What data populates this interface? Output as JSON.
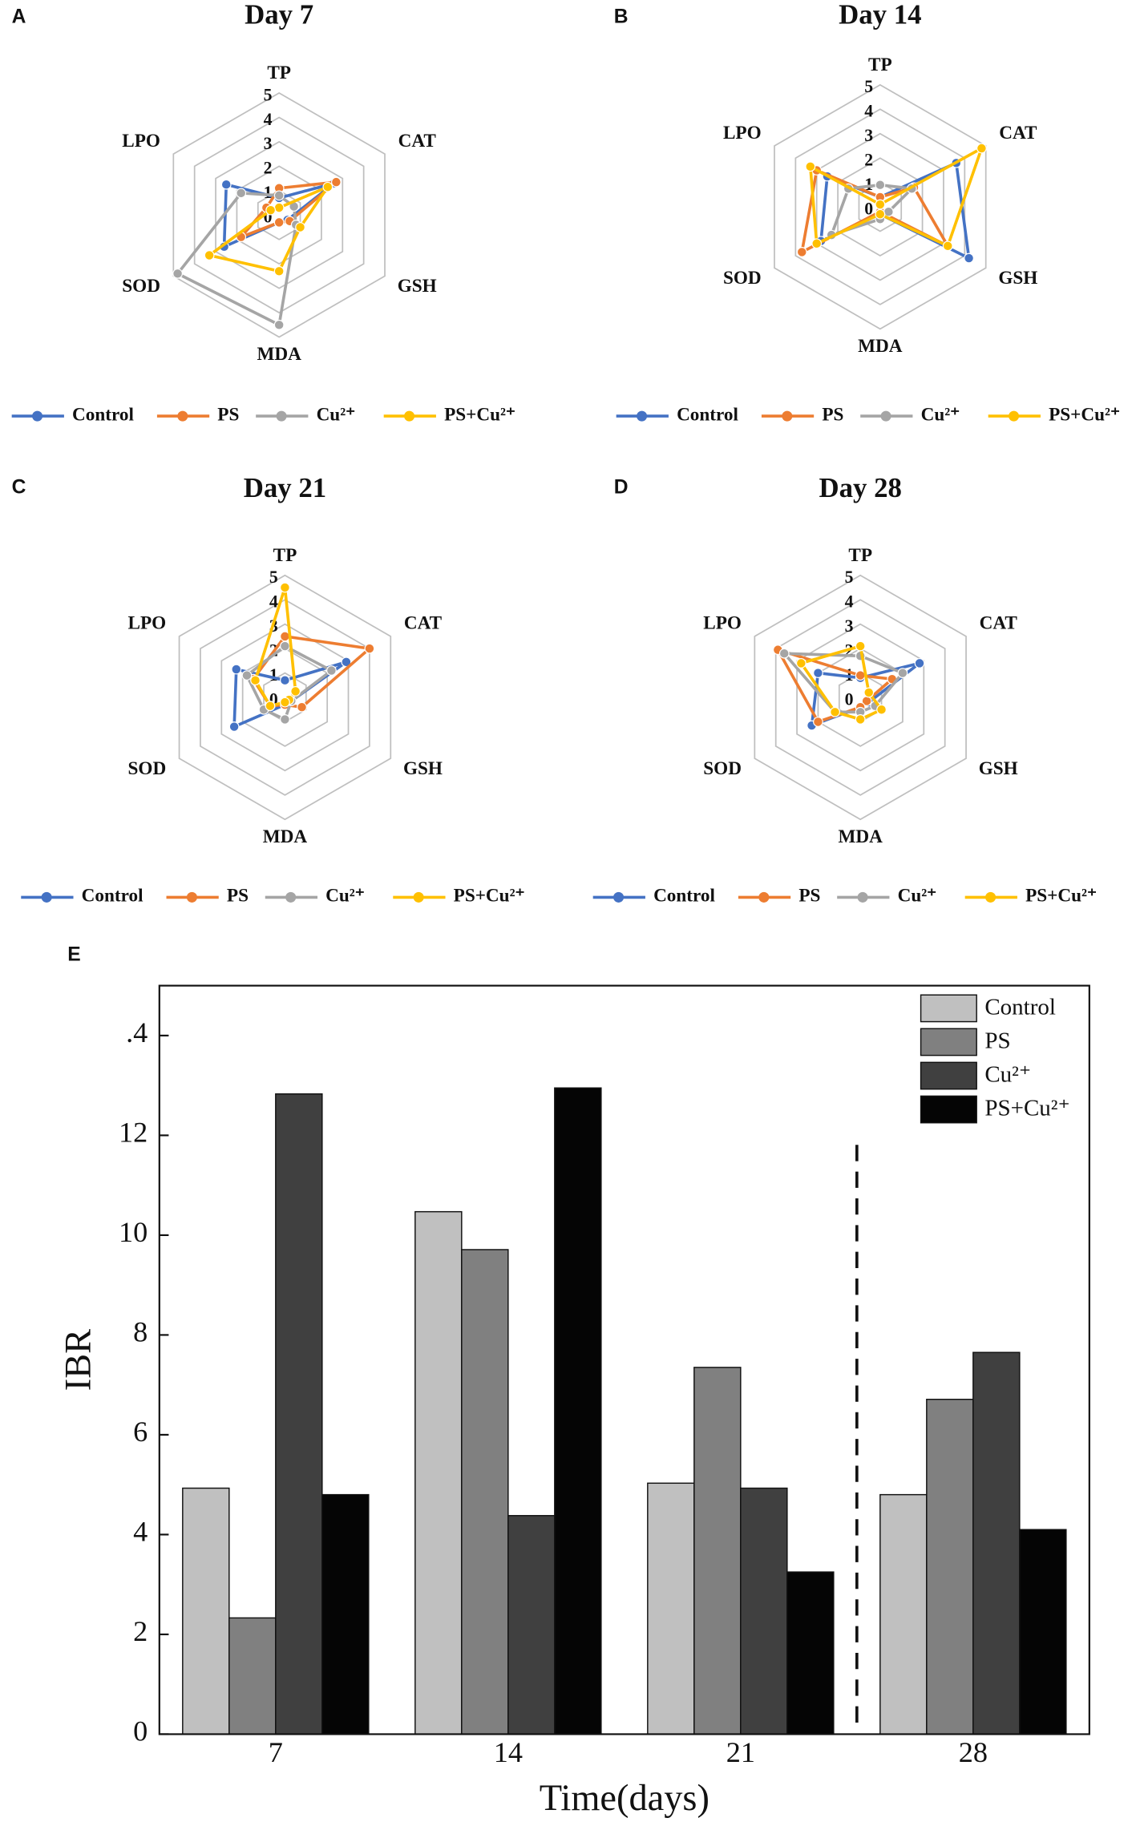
{
  "chart_data": [
    {
      "type": "radar",
      "panel": "A",
      "title": "Day 7",
      "axes": [
        "TP",
        "CAT",
        "GSH",
        "MDA",
        "SOD",
        "LPO"
      ],
      "rlim": [
        0,
        5
      ],
      "rticks": [
        0,
        1,
        2,
        3,
        4,
        5
      ],
      "series": [
        {
          "name": "Control",
          "color": "#4472c4",
          "values": [
            0.7,
            2.6,
            0.4,
            0.3,
            2.6,
            2.5
          ]
        },
        {
          "name": "PS",
          "color": "#ed7d31",
          "values": [
            1.1,
            2.7,
            0.5,
            0.3,
            1.8,
            0.6
          ]
        },
        {
          "name": "Cu²⁺",
          "color": "#a5a5a5",
          "values": [
            0.8,
            0.7,
            0.8,
            4.5,
            4.8,
            1.8
          ]
        },
        {
          "name": "PS+Cu²⁺",
          "color": "#ffc000",
          "values": [
            0.3,
            2.3,
            1.0,
            2.3,
            3.3,
            0.4
          ]
        }
      ]
    },
    {
      "type": "radar",
      "panel": "B",
      "title": "Day 14",
      "axes": [
        "TP",
        "CAT",
        "GSH",
        "MDA",
        "SOD",
        "LPO"
      ],
      "rlim": [
        0,
        5
      ],
      "rticks": [
        0,
        1,
        2,
        3,
        4,
        5
      ],
      "series": [
        {
          "name": "Control",
          "color": "#4472c4",
          "values": [
            0.4,
            3.6,
            4.2,
            0.3,
            2.8,
            2.5
          ]
        },
        {
          "name": "PS",
          "color": "#ed7d31",
          "values": [
            0.4,
            1.6,
            3.2,
            0.2,
            3.7,
            3.0
          ]
        },
        {
          "name": "Cu²⁺",
          "color": "#a5a5a5",
          "values": [
            0.9,
            1.5,
            0.4,
            0.5,
            2.3,
            1.5
          ]
        },
        {
          "name": "PS+Cu²⁺",
          "color": "#ffc000",
          "values": [
            0.1,
            4.8,
            3.2,
            0.3,
            3.0,
            3.3
          ]
        }
      ]
    },
    {
      "type": "radar",
      "panel": "C",
      "title": "Day 21",
      "axes": [
        "TP",
        "CAT",
        "GSH",
        "MDA",
        "SOD",
        "LPO"
      ],
      "rlim": [
        0,
        5
      ],
      "rticks": [
        0,
        1,
        2,
        3,
        4,
        5
      ],
      "series": [
        {
          "name": "Control",
          "color": "#4472c4",
          "values": [
            0.7,
            2.9,
            0.3,
            0.3,
            2.4,
            2.3
          ]
        },
        {
          "name": "PS",
          "color": "#ed7d31",
          "values": [
            2.5,
            4.0,
            0.8,
            0.3,
            0.7,
            1.5
          ]
        },
        {
          "name": "Cu²⁺",
          "color": "#a5a5a5",
          "values": [
            2.1,
            2.2,
            0.3,
            0.9,
            1.0,
            1.8
          ]
        },
        {
          "name": "PS+Cu²⁺",
          "color": "#ffc000",
          "values": [
            4.5,
            0.5,
            0.2,
            0.2,
            0.7,
            1.4
          ]
        }
      ]
    },
    {
      "type": "radar",
      "panel": "D",
      "title": "Day 28",
      "axes": [
        "TP",
        "CAT",
        "GSH",
        "MDA",
        "SOD",
        "LPO"
      ],
      "rlim": [
        0,
        5
      ],
      "rticks": [
        0,
        1,
        2,
        3,
        4,
        5
      ],
      "series": [
        {
          "name": "Control",
          "color": "#4472c4",
          "values": [
            0.8,
            2.8,
            0.4,
            0.4,
            2.3,
            2.0
          ]
        },
        {
          "name": "PS",
          "color": "#ed7d31",
          "values": [
            0.9,
            1.5,
            0.3,
            0.4,
            2.0,
            3.9
          ]
        },
        {
          "name": "Cu²⁺",
          "color": "#a5a5a5",
          "values": [
            1.7,
            2.0,
            0.7,
            0.6,
            1.2,
            3.6
          ]
        },
        {
          "name": "PS+Cu²⁺",
          "color": "#ffc000",
          "values": [
            2.1,
            0.4,
            1.0,
            0.9,
            1.2,
            2.8
          ]
        }
      ]
    },
    {
      "type": "bar",
      "panel": "E",
      "xlabel": "Time(days)",
      "ylabel": "IBR",
      "categories": [
        "7",
        "14",
        "21",
        "28"
      ],
      "ylim": [
        0,
        15
      ],
      "yticks": [
        0,
        2,
        4,
        6,
        8,
        10,
        12,
        {
          "value": 14,
          "label": ".4"
        }
      ],
      "legend": "upper right",
      "series": [
        {
          "name": "Control",
          "color": "#c0c0c0",
          "values": [
            4.93,
            10.47,
            5.03,
            4.8
          ]
        },
        {
          "name": "PS",
          "color": "#808080",
          "values": [
            2.33,
            9.71,
            7.35,
            6.71
          ]
        },
        {
          "name": "Cu²⁺",
          "color": "#404040",
          "values": [
            12.83,
            4.38,
            4.93,
            7.65
          ]
        },
        {
          "name": "PS+Cu²⁺",
          "color": "#050505",
          "values": [
            4.8,
            12.95,
            3.25,
            4.1
          ]
        }
      ]
    }
  ]
}
